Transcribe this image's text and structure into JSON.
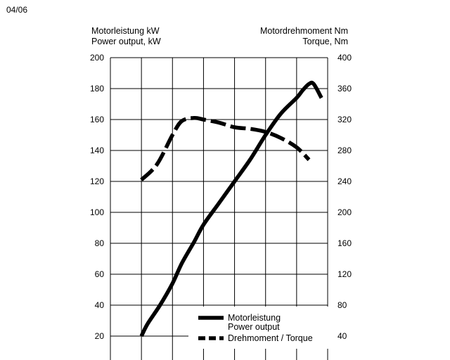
{
  "page_label": "04/06",
  "chart_data": {
    "type": "line",
    "left_axis": {
      "label_de": "Motorleistung kW",
      "label_en": "Power output, kW",
      "ylim": [
        0,
        200
      ],
      "ticks": [
        "200",
        "180",
        "160",
        "140",
        "120",
        "100",
        "80",
        "60",
        "40",
        "20"
      ]
    },
    "right_axis": {
      "label_de": "Motordrehmoment Nm",
      "label_en": "Torque, Nm",
      "ylim": [
        0,
        400
      ],
      "ticks": [
        "400",
        "360",
        "320",
        "280",
        "240",
        "200",
        "160",
        "120",
        "80",
        "40"
      ]
    },
    "x_gridlines": 7,
    "grid": true,
    "legend_position": "bottom-right",
    "series": [
      {
        "name_de": "Motorleistung",
        "name_en": "Power output",
        "axis": "left",
        "style": "solid",
        "x": [
          1.0,
          1.2,
          1.6,
          2.0,
          2.3,
          2.7,
          3.0,
          3.5,
          4.0,
          4.5,
          5.0,
          5.5,
          6.0,
          6.2,
          6.4,
          6.55,
          6.8
        ],
        "values": [
          20,
          28,
          40,
          54,
          67,
          81,
          92,
          106,
          120,
          134,
          150,
          164,
          174,
          179,
          183,
          183,
          174
        ]
      },
      {
        "name": "Drehmoment / Torque",
        "axis": "right",
        "style": "dashed",
        "x": [
          1.0,
          1.5,
          2.0,
          2.3,
          2.7,
          3.0,
          3.5,
          4.0,
          4.5,
          5.0,
          5.5,
          6.0,
          6.4
        ],
        "values": [
          242,
          262,
          300,
          318,
          322,
          320,
          316,
          310,
          308,
          304,
          296,
          284,
          268
        ]
      }
    ]
  }
}
